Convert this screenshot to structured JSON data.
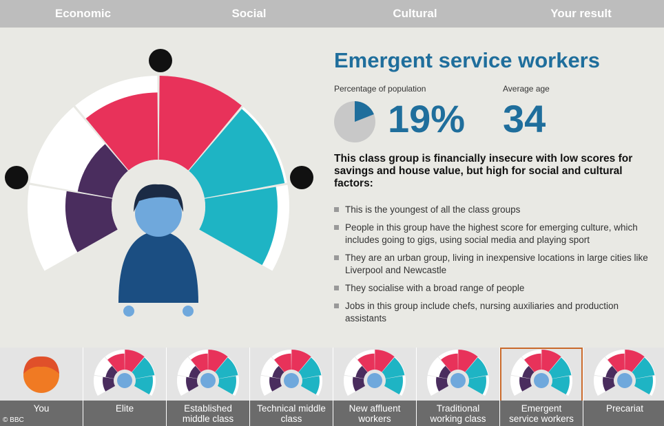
{
  "nav": {
    "tabs": [
      "Economic",
      "Social",
      "Cultural",
      "Your result"
    ]
  },
  "result": {
    "title": "Emergent service workers",
    "population_label": "Percentage of population",
    "percentage": {
      "value": 19,
      "label": "19%"
    },
    "age_label": "Average age",
    "age": "34",
    "summary": "This class group is financially insecure with low scores for savings and house value, but high for social and cultural factors:",
    "bullets": [
      "This is the youngest of all the class groups",
      "People in this group have the highest score for emerging culture, which includes going to gigs, using social media and playing sport",
      "They are an urban group, living in inexpensive locations in large cities like Liverpool and Newcastle",
      "They socialise with a broad range of people",
      "Jobs in this group include chefs, nursing auxiliaries and production assistants"
    ]
  },
  "classes": [
    "You",
    "Elite",
    "Established middle class",
    "Technical middle class",
    "New affluent workers",
    "Traditional working class",
    "Emergent service workers",
    "Precariat"
  ],
  "footer": "© BBC"
}
